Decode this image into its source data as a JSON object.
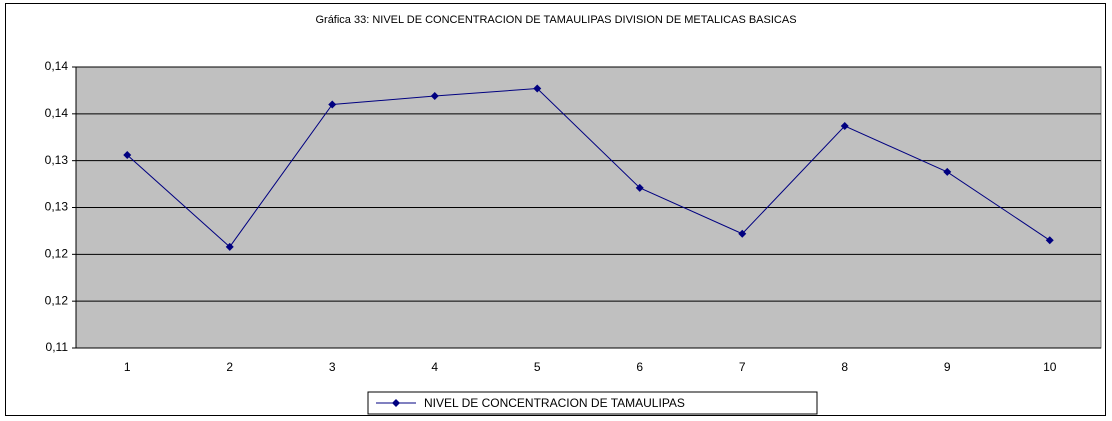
{
  "chart_data": {
    "type": "line",
    "title": "Gráfica 33: NIVEL DE CONCENTRACION DE TAMAULIPAS DIVISION DE METALICAS BASICAS",
    "categories": [
      "1",
      "2",
      "3",
      "4",
      "5",
      "6",
      "7",
      "8",
      "9",
      "10"
    ],
    "series": [
      {
        "name": "NIVEL DE CONCENTRACION DE TAMAULIPAS",
        "color": "#000080",
        "values": [
          0.1306,
          0.1208,
          0.136,
          0.1369,
          0.1377,
          0.1271,
          0.1222,
          0.1337,
          0.1288,
          0.1215
        ]
      }
    ],
    "ylim": [
      0.11,
      0.14
    ],
    "yticks": [
      {
        "value": 0.11,
        "label": "0,11"
      },
      {
        "value": 0.115,
        "label": "0,12"
      },
      {
        "value": 0.12,
        "label": "0,12"
      },
      {
        "value": 0.125,
        "label": "0,13"
      },
      {
        "value": 0.13,
        "label": "0,13"
      },
      {
        "value": 0.135,
        "label": "0,14"
      },
      {
        "value": 0.14,
        "label": "0,14"
      }
    ],
    "grid": true,
    "legend": "bottom"
  }
}
